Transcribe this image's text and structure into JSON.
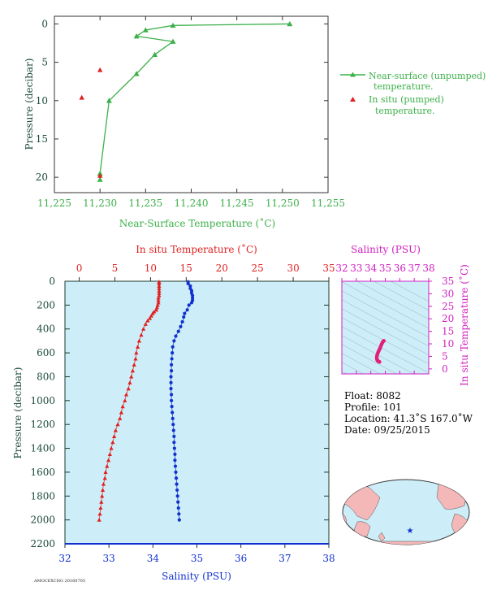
{
  "colors": {
    "green": "#3cb04a",
    "red": "#e02020",
    "blue": "#1030d0",
    "magenta": "#d020c0",
    "axis_dark": "#1a4a3a",
    "panel_bg": "#cdeef8",
    "land": "#f4b8b8",
    "ocean": "#cdeef8"
  },
  "chart_data": [
    {
      "type": "line",
      "title": "",
      "xlabel": "Near-Surface Temperature (˚C)",
      "ylabel": "Pressure (decibar)",
      "xlim": [
        11.225,
        11.255
      ],
      "ylim": [
        22,
        -1
      ],
      "x_ticks": [
        "11,225",
        "11,230",
        "11,235",
        "11,240",
        "11,245",
        "11,250",
        "11,255"
      ],
      "y_ticks": [
        "0",
        "5",
        "10",
        "15",
        "20"
      ],
      "legend": "right",
      "series": [
        {
          "name": "Near-surface (unpumped) temperature.",
          "marker": "triangle",
          "x": [
            11.2508,
            11.238,
            11.235,
            11.234,
            11.238,
            11.236,
            11.234,
            11.231,
            11.23,
            11.23
          ],
          "y": [
            0,
            0.2,
            0.8,
            1.6,
            2.3,
            4.0,
            6.5,
            10.0,
            19.5,
            20.3
          ]
        },
        {
          "name": "In situ (pumped) temperature.",
          "marker": "triangle",
          "x": [
            11.23,
            11.228,
            11.23
          ],
          "y": [
            6.0,
            9.6,
            19.8
          ]
        }
      ]
    },
    {
      "type": "scatter",
      "title": "",
      "x_top_label": "In situ Temperature (˚C)",
      "x_bottom_label": "Salinity (PSU)",
      "ylabel": "Pressure (decibar)",
      "temp_lim": [
        -2,
        35
      ],
      "sal_lim": [
        32,
        38
      ],
      "ylim": [
        2200,
        0
      ],
      "temp_ticks": [
        "0",
        "5",
        "10",
        "15",
        "20",
        "25",
        "30",
        "35"
      ],
      "sal_ticks": [
        "32",
        "33",
        "34",
        "35",
        "36",
        "37",
        "38"
      ],
      "y_ticks": [
        "0",
        "200",
        "400",
        "600",
        "800",
        "1000",
        "1200",
        "1400",
        "1600",
        "1800",
        "2000",
        "2200"
      ],
      "series": [
        {
          "name": "In situ Temperature",
          "axis": "temperature",
          "marker": "triangle",
          "pressure": [
            5,
            20,
            40,
            60,
            80,
            100,
            120,
            140,
            160,
            180,
            200,
            220,
            240,
            255,
            270,
            290,
            310,
            330,
            360,
            400,
            450,
            500,
            550,
            600,
            650,
            700,
            750,
            800,
            850,
            900,
            950,
            1000,
            1050,
            1100,
            1150,
            1200,
            1250,
            1300,
            1350,
            1400,
            1450,
            1500,
            1550,
            1600,
            1650,
            1700,
            1750,
            1800,
            1850,
            1900,
            1950,
            2000
          ],
          "value": [
            11.2,
            11.2,
            11.2,
            11.2,
            11.2,
            11.2,
            11.2,
            11.1,
            11.1,
            11.1,
            11.0,
            10.9,
            10.8,
            10.5,
            10.3,
            10.1,
            9.9,
            9.6,
            9.3,
            9.0,
            8.7,
            8.4,
            8.2,
            8.0,
            7.9,
            7.7,
            7.5,
            7.3,
            7.1,
            6.9,
            6.6,
            6.4,
            6.1,
            5.9,
            5.7,
            5.4,
            5.1,
            4.9,
            4.7,
            4.5,
            4.3,
            4.1,
            3.9,
            3.7,
            3.6,
            3.4,
            3.3,
            3.2,
            3.1,
            3.0,
            2.9,
            2.8
          ]
        },
        {
          "name": "Salinity",
          "axis": "salinity",
          "marker": "circle",
          "pressure": [
            5,
            20,
            40,
            60,
            80,
            100,
            120,
            140,
            160,
            180,
            200,
            240,
            270,
            300,
            340,
            380,
            420,
            460,
            500,
            550,
            600,
            650,
            700,
            750,
            800,
            850,
            900,
            950,
            1000,
            1050,
            1100,
            1150,
            1200,
            1250,
            1300,
            1350,
            1400,
            1450,
            1500,
            1550,
            1600,
            1650,
            1700,
            1750,
            1800,
            1850,
            1900,
            1950,
            2000
          ],
          "value": [
            34.8,
            34.8,
            34.85,
            34.85,
            34.88,
            34.88,
            34.9,
            34.9,
            34.9,
            34.88,
            34.82,
            34.78,
            34.72,
            34.7,
            34.67,
            34.63,
            34.58,
            34.52,
            34.48,
            34.45,
            34.44,
            34.43,
            34.42,
            34.42,
            34.41,
            34.41,
            34.41,
            34.42,
            34.42,
            34.43,
            34.44,
            34.45,
            34.46,
            34.47,
            34.48,
            34.48,
            34.49,
            34.5,
            34.5,
            34.51,
            34.52,
            34.53,
            34.54,
            34.55,
            34.56,
            34.57,
            34.58,
            34.59,
            34.6
          ]
        }
      ]
    },
    {
      "type": "scatter",
      "title": "Salinity (PSU)",
      "xlabel": "Salinity (PSU)",
      "ylabel": "In situ Temperature (˚C)",
      "xlim": [
        32,
        38
      ],
      "ylim": [
        -2,
        35
      ],
      "x_ticks": [
        "32",
        "33",
        "34",
        "35",
        "36",
        "37",
        "38"
      ],
      "y_ticks": [
        "0",
        "5",
        "10",
        "15",
        "20",
        "25",
        "30",
        "35"
      ],
      "series": [
        {
          "name": "T-S",
          "x": [
            34.9,
            34.85,
            34.8,
            34.75,
            34.7,
            34.65,
            34.6,
            34.55,
            34.5,
            34.45,
            34.42,
            34.41,
            34.42,
            34.44,
            34.46,
            34.5,
            34.55,
            34.6
          ],
          "y": [
            11.2,
            11.0,
            10.5,
            9.9,
            9.2,
            8.4,
            7.8,
            7.2,
            6.5,
            5.8,
            5.1,
            4.5,
            4.0,
            3.6,
            3.3,
            3.1,
            2.9,
            2.8
          ]
        }
      ]
    }
  ],
  "info": {
    "float": "Float:  8082",
    "profile": "Profile:  101",
    "location": "Location:  41.3˚S  167.0˚W",
    "date": "Date:  09/25/2015"
  },
  "map": {
    "marker_icon": "star-icon",
    "marker_lon": -167.0,
    "marker_lat": -41.3
  },
  "footer_code": "AMOCEXCHG 20160705"
}
